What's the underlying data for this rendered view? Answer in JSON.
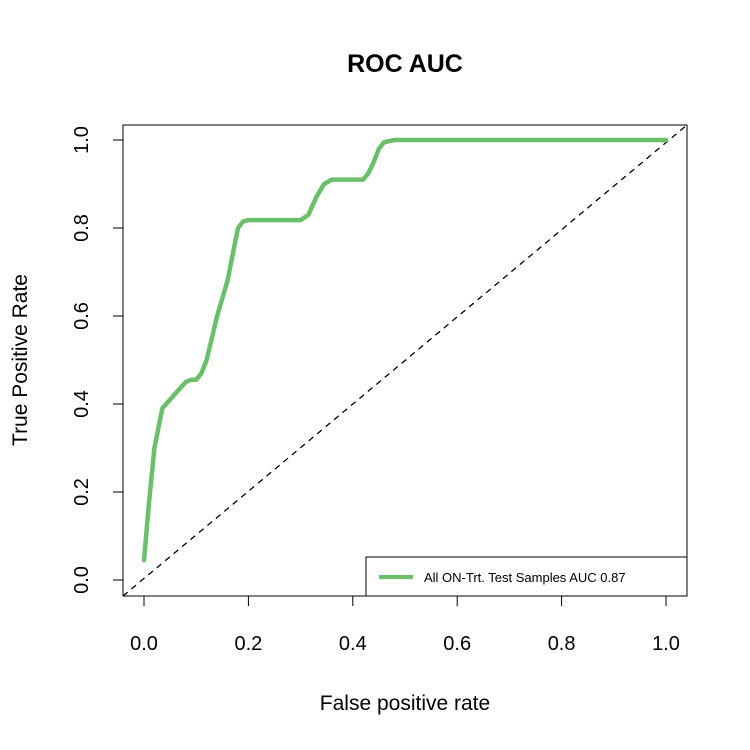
{
  "chart_data": {
    "type": "line",
    "title": "ROC AUC",
    "xlabel": "False positive rate",
    "ylabel": "True Positive Rate",
    "xlim": [
      0.0,
      1.0
    ],
    "ylim": [
      0.0,
      1.0
    ],
    "x_ticks": [
      "0.0",
      "0.2",
      "0.4",
      "0.6",
      "0.8",
      "1.0"
    ],
    "y_ticks": [
      "0.0",
      "0.2",
      "0.4",
      "0.6",
      "0.8",
      "1.0"
    ],
    "legend_position": "bottom-right",
    "series": [
      {
        "name": "All ON-Trt. Test Samples AUC 0.87",
        "color": "#6abf69",
        "x": [
          0.0,
          0.01,
          0.02,
          0.035,
          0.05,
          0.065,
          0.08,
          0.09,
          0.1,
          0.11,
          0.12,
          0.13,
          0.14,
          0.15,
          0.16,
          0.17,
          0.18,
          0.19,
          0.2,
          0.22,
          0.25,
          0.28,
          0.3,
          0.315,
          0.33,
          0.345,
          0.36,
          0.38,
          0.4,
          0.42,
          0.43,
          0.44,
          0.45,
          0.46,
          0.48,
          0.5,
          0.6,
          0.7,
          0.8,
          0.9,
          1.0
        ],
        "y": [
          0.045,
          0.18,
          0.3,
          0.39,
          0.41,
          0.43,
          0.45,
          0.455,
          0.455,
          0.47,
          0.5,
          0.55,
          0.6,
          0.64,
          0.68,
          0.74,
          0.8,
          0.815,
          0.818,
          0.818,
          0.818,
          0.818,
          0.818,
          0.83,
          0.87,
          0.9,
          0.91,
          0.91,
          0.91,
          0.91,
          0.925,
          0.95,
          0.98,
          0.995,
          1.0,
          1.0,
          1.0,
          1.0,
          1.0,
          1.0,
          1.0
        ]
      }
    ],
    "reference_line": "diagonal dashed"
  }
}
